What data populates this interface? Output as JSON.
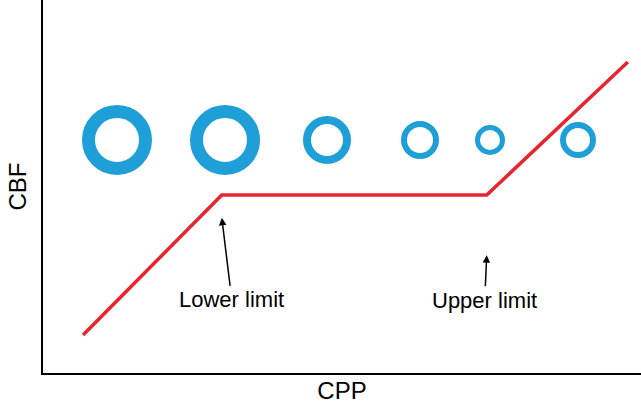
{
  "chart_data": {
    "type": "line",
    "x_label": "CPP",
    "y_label": "CBF",
    "x": [
      6.7,
      29.9,
      74.2,
      97.8
    ],
    "values": [
      10.2,
      47.7,
      47.7,
      83.4
    ],
    "color": "#e8242f",
    "xlim": [
      0,
      100
    ],
    "ylim": [
      0,
      100
    ],
    "tick_labels": false,
    "grid": false,
    "annotations": [
      {
        "text": "Lower limit",
        "x": 29.9,
        "y": 41.6
      },
      {
        "text": "Upper limit",
        "x": 74.2,
        "y": 31.6
      }
    ]
  }
}
